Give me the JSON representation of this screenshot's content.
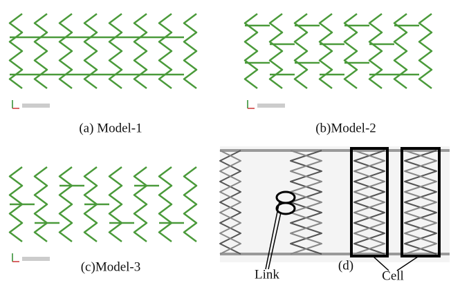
{
  "captions": {
    "a": "(a) Model-1",
    "b": "(b)Model-2",
    "c": "(c)Model-3",
    "d": "(d)"
  },
  "labels": {
    "link": "Link",
    "cell": "Cell"
  }
}
